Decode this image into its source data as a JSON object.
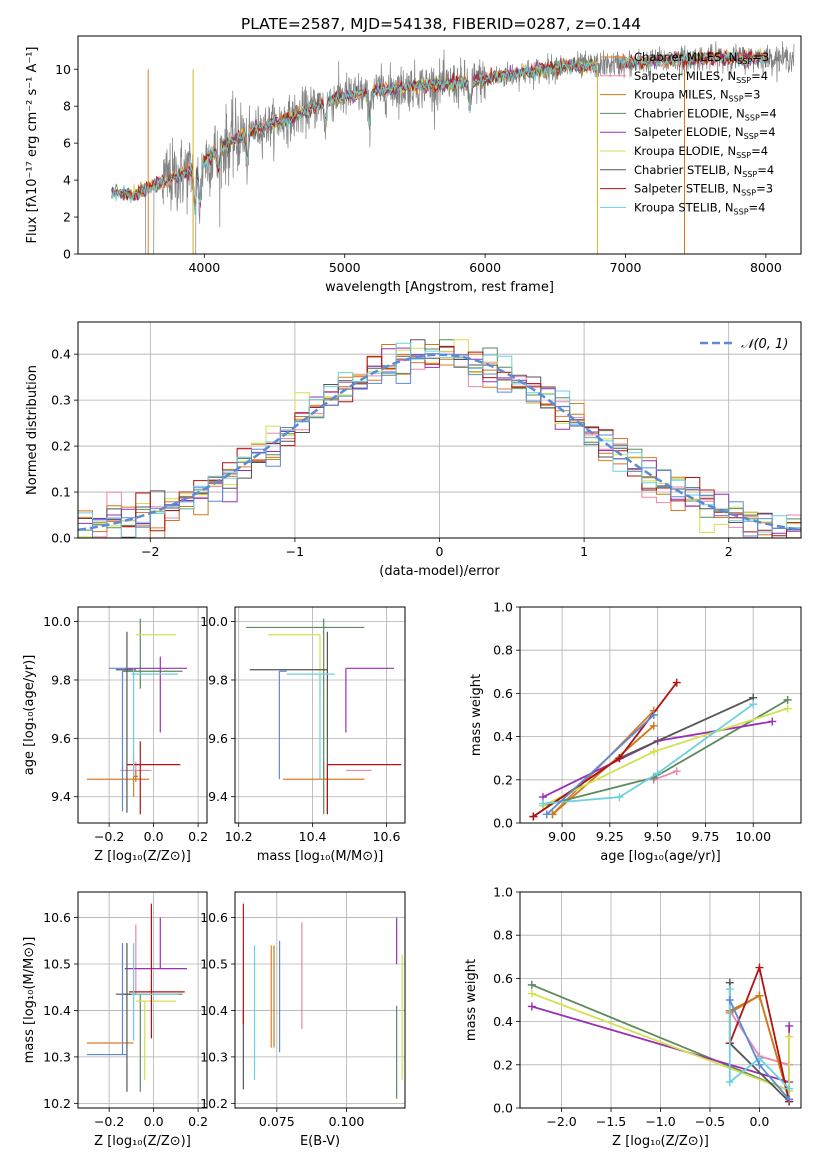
{
  "figure_title": "PLATE=2587, MJD=54138, FIBERID=0287, z=0.144",
  "series_colors": [
    "#e07b27",
    "#ea86b1",
    "#cc7a1a",
    "#5b8a5b",
    "#9a2fb3",
    "#d3e04f",
    "#555555",
    "#b31212",
    "#6ad1dd",
    "#5b8bd6"
  ],
  "legend_top": [
    {
      "label": "Chabrier MILES, N",
      "sub": "SSP",
      "eq": "=3",
      "color": "#e07b27"
    },
    {
      "label": "Salpeter MILES, N",
      "sub": "SSP",
      "eq": "=4",
      "color": "#ea86b1"
    },
    {
      "label": "Kroupa MILES, N",
      "sub": "SSP",
      "eq": "=3",
      "color": "#cc7a1a"
    },
    {
      "label": "Chabrier ELODIE, N",
      "sub": "SSP",
      "eq": "=4",
      "color": "#5b8a5b"
    },
    {
      "label": "Salpeter ELODIE, N",
      "sub": "SSP",
      "eq": "=4",
      "color": "#9a2fb3"
    },
    {
      "label": "Kroupa ELODIE, N",
      "sub": "SSP",
      "eq": "=4",
      "color": "#d3e04f"
    },
    {
      "label": "Chabrier STELIB, N",
      "sub": "SSP",
      "eq": "=4",
      "color": "#555555"
    },
    {
      "label": "Salpeter STELIB, N",
      "sub": "SSP",
      "eq": "=3",
      "color": "#b31212"
    },
    {
      "label": "Kroupa STELIB, N",
      "sub": "SSP",
      "eq": "=4",
      "color": "#6ad1dd"
    }
  ],
  "chart_data": [
    {
      "id": "spectrum",
      "type": "line",
      "title": "PLATE=2587, MJD=54138, FIBERID=0287, z=0.144",
      "xlabel": "wavelength [Angstrom, rest frame]",
      "ylabel": "Flux [fλ10⁻¹⁷ erg cm⁻² s⁻¹ A⁻¹]",
      "xlim": [
        3100,
        8250
      ],
      "ylim": [
        0,
        11.8
      ],
      "xticks": [
        4000,
        5000,
        6000,
        7000,
        8000
      ],
      "yticks": [
        0,
        2,
        4,
        6,
        8,
        10
      ],
      "continuum_knots": [
        [
          3340,
          3.4
        ],
        [
          3500,
          3.2
        ],
        [
          3700,
          3.9
        ],
        [
          3900,
          4.5
        ],
        [
          4100,
          5.6
        ],
        [
          4300,
          6.6
        ],
        [
          4600,
          7.3
        ],
        [
          4900,
          8.4
        ],
        [
          5200,
          8.8
        ],
        [
          5500,
          9.1
        ],
        [
          5800,
          9.2
        ],
        [
          6100,
          9.6
        ],
        [
          6500,
          10.1
        ],
        [
          7000,
          10.3
        ],
        [
          7500,
          10.6
        ],
        [
          8000,
          10.6
        ],
        [
          8200,
          10.6
        ]
      ],
      "data_range": [
        3340,
        8200
      ],
      "model_ranges": [
        [
          3340,
          6800
        ],
        [
          6960,
          8000
        ]
      ]
    },
    {
      "id": "residuals",
      "type": "step",
      "xlabel": "(data-model)/error",
      "ylabel": "Normed distribution",
      "xlim": [
        -2.5,
        2.5
      ],
      "ylim": [
        0,
        0.47
      ],
      "xticks": [
        -2,
        -1,
        0,
        1,
        2
      ],
      "yticks": [
        0.0,
        0.1,
        0.2,
        0.3,
        0.4
      ],
      "legend": "𝒩(0, 1)",
      "legend_position": "top-right",
      "bin_width": 0.1
    },
    {
      "id": "z_age",
      "type": "errorbar",
      "xlabel": "Z [log₁₀(Z/Z⊙)]",
      "ylabel": "age  [log₁₀(age/yr)]",
      "xlim": [
        -0.34,
        0.24
      ],
      "ylim": [
        9.31,
        10.05
      ],
      "xticks": [
        -0.2,
        0.0,
        0.2
      ],
      "xticklabels": [
        "−0.2",
        "0.0",
        "0.2"
      ],
      "yticks": [
        9.4,
        9.6,
        9.8,
        10.0
      ],
      "points": [
        {
          "x": -0.09,
          "y": 9.46,
          "xerr": [
            0.21,
            0.07
          ],
          "yerr": [
            0.06,
            0.08
          ],
          "color": "#e07b27"
        },
        {
          "x": -0.08,
          "y": 9.49,
          "xerr": [
            0.07,
            0.07
          ],
          "yerr": [
            0.03,
            0.03
          ],
          "color": "#ea86b1"
        },
        {
          "x": -0.08,
          "y": 9.47,
          "xerr": [
            0.01,
            0.01
          ],
          "yerr": [
            0.02,
            0.02
          ],
          "color": "#cc7a1a"
        },
        {
          "x": -0.06,
          "y": 9.83,
          "xerr": [
            0.08,
            0.19
          ],
          "yerr": [
            0.06,
            0.18
          ],
          "color": "#5b8a5b"
        },
        {
          "x": 0.03,
          "y": 9.84,
          "xerr": [
            0.16,
            0.12
          ],
          "yerr": [
            0.22,
            0.04
          ],
          "color": "#9a2fb3"
        },
        {
          "x": -0.04,
          "y": 9.955,
          "xerr": [
            0.04,
            0.14
          ],
          "yerr": [
            0.0,
            0.0
          ],
          "color": "#d3e04f"
        },
        {
          "x": -0.12,
          "y": 9.835,
          "xerr": [
            0.05,
            0.04
          ],
          "yerr": [
            0.49,
            0.13
          ],
          "color": "#555555"
        },
        {
          "x": -0.06,
          "y": 9.51,
          "xerr": [
            0.06,
            0.18
          ],
          "yerr": [
            0.17,
            0.08
          ],
          "color": "#b31212"
        },
        {
          "x": -0.09,
          "y": 9.82,
          "xerr": [
            0.01,
            0.2
          ],
          "yerr": [
            0.35,
            0.02
          ],
          "color": "#6ad1dd"
        },
        {
          "x": -0.14,
          "y": 9.84,
          "xerr": [
            0.06,
            0.02
          ],
          "yerr": [
            0.49,
            0.0
          ],
          "color": "#5b8bd6"
        }
      ]
    },
    {
      "id": "mass_age",
      "type": "errorbar",
      "xlabel": "mass [log₁₀(M/M⊙)]",
      "xlim": [
        10.19,
        10.65
      ],
      "ylim": [
        9.31,
        10.05
      ],
      "xticks": [
        10.2,
        10.4,
        10.6
      ],
      "yticks": [
        9.4,
        9.6,
        9.8,
        10.0
      ],
      "points": [
        {
          "x": 10.43,
          "y": 9.46,
          "xerr": [
            0.11,
            0.11
          ],
          "yerr": [
            0.0,
            0.06
          ],
          "color": "#e07b27"
        },
        {
          "x": 10.49,
          "y": 9.49,
          "xerr": [
            0.0,
            0.07
          ],
          "yerr": [
            0.0,
            0.0
          ],
          "color": "#ea86b1"
        },
        {
          "x": 10.32,
          "y": 9.47,
          "xerr": [
            0.0,
            0.0
          ],
          "yerr": [
            0.0,
            0.0
          ],
          "color": "#cc7a1a"
        },
        {
          "x": 10.43,
          "y": 9.98,
          "xerr": [
            0.21,
            0.11
          ],
          "yerr": [
            0.64,
            0.03
          ],
          "color": "#5b8a5b"
        },
        {
          "x": 10.49,
          "y": 9.84,
          "xerr": [
            0.0,
            0.13
          ],
          "yerr": [
            0.22,
            0.0
          ],
          "color": "#9a2fb3"
        },
        {
          "x": 10.42,
          "y": 9.955,
          "xerr": [
            0.14,
            0.0
          ],
          "yerr": [
            0.22,
            0.0
          ],
          "color": "#d3e04f"
        },
        {
          "x": 10.44,
          "y": 9.835,
          "xerr": [
            0.21,
            0.0
          ],
          "yerr": [
            0.49,
            0.13
          ],
          "color": "#555555"
        },
        {
          "x": 10.44,
          "y": 9.51,
          "xerr": [
            0.0,
            0.2
          ],
          "yerr": [
            0.17,
            0.0
          ],
          "color": "#b31212"
        },
        {
          "x": 10.42,
          "y": 9.82,
          "xerr": [
            0.09,
            0.04
          ],
          "yerr": [
            0.36,
            0.0
          ],
          "color": "#6ad1dd"
        },
        {
          "x": 10.31,
          "y": 9.83,
          "xerr": [
            0.0,
            0.02
          ],
          "yerr": [
            0.37,
            0.0
          ],
          "color": "#5b8bd6"
        }
      ]
    },
    {
      "id": "age_weight",
      "type": "line",
      "xlabel": "age  [log₁₀(age/yr)]",
      "ylabel": "mass weight",
      "xlim": [
        8.78,
        10.25
      ],
      "ylim": [
        0,
        1
      ],
      "xticks": [
        9.0,
        9.25,
        9.5,
        9.75,
        10.0
      ],
      "xticklabels": [
        "9.00",
        "9.25",
        "9.50",
        "9.75",
        "10.00"
      ],
      "yticks": [
        0.0,
        0.2,
        0.4,
        0.6,
        0.8,
        1.0
      ],
      "series": [
        {
          "color": "#e07b27",
          "x": [
            8.95,
            9.48
          ],
          "y": [
            0.04,
            0.52
          ]
        },
        {
          "color": "#ea86b1",
          "x": [
            9.48,
            9.6
          ],
          "y": [
            0.2,
            0.24
          ]
        },
        {
          "color": "#cc7a1a",
          "x": [
            8.95,
            9.48
          ],
          "y": [
            0.04,
            0.45
          ]
        },
        {
          "color": "#5b8a5b",
          "x": [
            8.9,
            9.48,
            10.18
          ],
          "y": [
            0.08,
            0.21,
            0.57
          ]
        },
        {
          "color": "#9a2fb3",
          "x": [
            8.9,
            9.5,
            10.1
          ],
          "y": [
            0.12,
            0.38,
            0.47
          ]
        },
        {
          "color": "#d3e04f",
          "x": [
            8.9,
            9.48,
            10.18
          ],
          "y": [
            0.08,
            0.33,
            0.53
          ]
        },
        {
          "color": "#555555",
          "x": [
            8.85,
            9.3,
            10.0
          ],
          "y": [
            0.03,
            0.3,
            0.58
          ]
        },
        {
          "color": "#b31212",
          "x": [
            8.85,
            9.3,
            9.6
          ],
          "y": [
            0.03,
            0.3,
            0.65
          ]
        },
        {
          "color": "#6ad1dd",
          "x": [
            8.9,
            9.3,
            9.5,
            10.0
          ],
          "y": [
            0.09,
            0.12,
            0.23,
            0.55
          ]
        },
        {
          "color": "#5b8bd6",
          "x": [
            8.92,
            9.48
          ],
          "y": [
            0.04,
            0.5
          ]
        }
      ]
    },
    {
      "id": "z_mass",
      "type": "errorbar",
      "xlabel": "Z [log₁₀(Z/Z⊙)]",
      "ylabel": "mass [log₁₀(M/M⊙)]",
      "xlim": [
        -0.34,
        0.24
      ],
      "ylim": [
        10.19,
        10.655
      ],
      "xticks": [
        -0.2,
        0.0,
        0.2
      ],
      "xticklabels": [
        "−0.2",
        "0.0",
        "0.2"
      ],
      "yticks": [
        10.2,
        10.3,
        10.4,
        10.5,
        10.6
      ],
      "points": [
        {
          "x": -0.09,
          "y": 10.33,
          "xerr": [
            0.21,
            0.0
          ],
          "yerr": [
            0.0,
            0.0
          ],
          "color": "#e07b27"
        },
        {
          "x": -0.08,
          "y": 10.435,
          "xerr": [
            0.07,
            0.07
          ],
          "yerr": [
            0.0,
            0.15
          ],
          "color": "#ea86b1"
        },
        {
          "x": -0.08,
          "y": 10.32,
          "xerr": [
            0.0,
            0.0
          ],
          "yerr": [
            0.0,
            0.0
          ],
          "color": "#cc7a1a"
        },
        {
          "x": -0.06,
          "y": 10.435,
          "xerr": [
            0.08,
            0.19
          ],
          "yerr": [
            0.21,
            0.0
          ],
          "color": "#5b8a5b"
        },
        {
          "x": 0.03,
          "y": 10.49,
          "xerr": [
            0.16,
            0.12
          ],
          "yerr": [
            0.0,
            0.11
          ],
          "color": "#9a2fb3"
        },
        {
          "x": -0.04,
          "y": 10.42,
          "xerr": [
            0.04,
            0.14
          ],
          "yerr": [
            0.17,
            0.0
          ],
          "color": "#d3e04f"
        },
        {
          "x": -0.12,
          "y": 10.435,
          "xerr": [
            0.05,
            0.04
          ],
          "yerr": [
            0.21,
            0.11
          ],
          "color": "#555555"
        },
        {
          "x": -0.01,
          "y": 10.44,
          "xerr": [
            0.1,
            0.15
          ],
          "yerr": [
            0.1,
            0.19
          ],
          "color": "#b31212"
        },
        {
          "x": -0.09,
          "y": 10.435,
          "xerr": [
            0.01,
            0.2
          ],
          "yerr": [
            0.1,
            0.11
          ],
          "color": "#6ad1dd"
        },
        {
          "x": -0.14,
          "y": 10.305,
          "xerr": [
            0.16,
            0.02
          ],
          "yerr": [
            0.0,
            0.24
          ],
          "color": "#5b8bd6"
        }
      ]
    },
    {
      "id": "ebv_mass",
      "type": "errorbar",
      "xlabel": "E(B-V)",
      "xlim": [
        0.06,
        0.121
      ],
      "ylim": [
        10.19,
        10.655
      ],
      "xticks": [
        0.075,
        0.1
      ],
      "xticklabels": [
        "0.075",
        "0.100"
      ],
      "yticks": [
        10.2,
        10.3,
        10.4,
        10.5,
        10.6
      ],
      "points": [
        {
          "x": 0.073,
          "y": 10.43,
          "yerr": [
            0.11,
            0.11
          ],
          "color": "#e07b27"
        },
        {
          "x": 0.084,
          "y": 10.44,
          "yerr": [
            0.08,
            0.15
          ],
          "color": "#ea86b1"
        },
        {
          "x": 0.074,
          "y": 10.43,
          "yerr": [
            0.11,
            0.11
          ],
          "color": "#cc7a1a"
        },
        {
          "x": 0.118,
          "y": 10.41,
          "yerr": [
            0.2,
            0.0
          ],
          "color": "#5b8a5b"
        },
        {
          "x": 0.118,
          "y": 10.5,
          "yerr": [
            0.0,
            0.1
          ],
          "color": "#9a2fb3"
        },
        {
          "x": 0.12,
          "y": 10.38,
          "yerr": [
            0.13,
            0.14
          ],
          "color": "#d3e04f"
        },
        {
          "x": 0.063,
          "y": 10.4,
          "yerr": [
            0.17,
            0.0
          ],
          "color": "#555555"
        },
        {
          "x": 0.063,
          "y": 10.5,
          "yerr": [
            0.13,
            0.13
          ],
          "color": "#b31212"
        },
        {
          "x": 0.067,
          "y": 10.4,
          "yerr": [
            0.15,
            0.14
          ],
          "color": "#6ad1dd"
        },
        {
          "x": 0.076,
          "y": 10.43,
          "yerr": [
            0.12,
            0.12
          ],
          "color": "#5b8bd6"
        }
      ]
    },
    {
      "id": "z_weight",
      "type": "line",
      "xlabel": "Z [log₁₀(Z/Z⊙)]",
      "ylabel": "mass weight",
      "xlim": [
        -2.42,
        0.42
      ],
      "ylim": [
        0,
        1
      ],
      "xticks": [
        -2.0,
        -1.5,
        -1.0,
        -0.5,
        0.0
      ],
      "xticklabels": [
        "−2.0",
        "−1.5",
        "−1.0",
        "−0.5",
        "0.0"
      ],
      "yticks": [
        0.0,
        0.2,
        0.4,
        0.6,
        0.8,
        1.0
      ],
      "series": [
        {
          "color": "#e07b27",
          "x": [
            -0.3,
            0.0,
            0.3
          ],
          "y": [
            0.44,
            0.52,
            0.04
          ]
        },
        {
          "color": "#ea86b1",
          "x": [
            -0.3,
            0.0,
            0.3
          ],
          "y": [
            0.45,
            0.24,
            0.2
          ]
        },
        {
          "color": "#cc7a1a",
          "x": [
            -0.3,
            0.0,
            0.3
          ],
          "y": [
            0.45,
            0.52,
            0.04
          ]
        },
        {
          "color": "#5b8a5b",
          "x": [
            -2.3,
            0.3
          ],
          "y": [
            0.57,
            0.08
          ]
        },
        {
          "color": "#9a2fb3",
          "x": [
            -2.3,
            0.3,
            0.3
          ],
          "y": [
            0.47,
            0.12,
            0.38
          ]
        },
        {
          "color": "#d3e04f",
          "x": [
            -2.3,
            0.3,
            0.3
          ],
          "y": [
            0.53,
            0.08,
            0.33
          ]
        },
        {
          "color": "#555555",
          "x": [
            -0.3,
            -0.3,
            0.3
          ],
          "y": [
            0.58,
            0.3,
            0.03
          ]
        },
        {
          "color": "#b31212",
          "x": [
            -0.3,
            0.0,
            0.3
          ],
          "y": [
            0.3,
            0.65,
            0.03
          ]
        },
        {
          "color": "#6ad1dd",
          "x": [
            -0.3,
            -0.3,
            0.0,
            0.3
          ],
          "y": [
            0.55,
            0.12,
            0.23,
            0.09
          ]
        },
        {
          "color": "#5b8bd6",
          "x": [
            -0.3,
            0.0,
            0.3
          ],
          "y": [
            0.5,
            0.2,
            0.04
          ]
        }
      ]
    }
  ]
}
